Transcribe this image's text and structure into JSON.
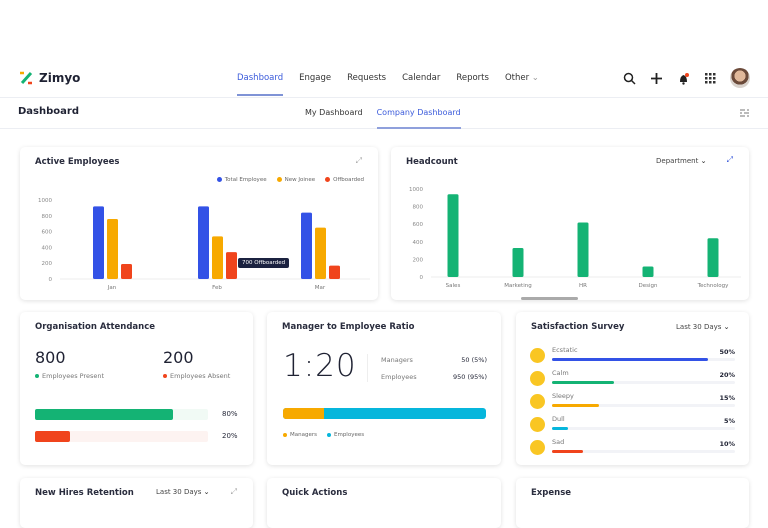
{
  "brand": {
    "name": "Zimyo"
  },
  "nav": {
    "items": [
      "Dashboard",
      "Engage",
      "Requests",
      "Calendar",
      "Reports",
      "Other"
    ],
    "active": "Dashboard"
  },
  "header_icons": [
    "search-icon",
    "plus-icon",
    "bell-icon",
    "apps-grid-icon",
    "avatar"
  ],
  "subheader": {
    "title": "Dashboard",
    "tabs": [
      "My Dashboard",
      "Company Dashboard"
    ],
    "active_tab": "Company Dashboard"
  },
  "colors": {
    "accent": "#3b5bdb",
    "blue": "#3352e6",
    "orange": "#f7a900",
    "red": "#f0441c",
    "green": "#14b374",
    "cyan": "#06b6dc"
  },
  "active_employees": {
    "title": "Active Employees",
    "tooltip": "700 Offboarded"
  },
  "headcount": {
    "title": "Headcount",
    "filter": "Department"
  },
  "chart_data": [
    {
      "type": "bar",
      "title": "Active Employees",
      "categories": [
        "Jan",
        "Feb",
        "Mar"
      ],
      "ylim": [
        0,
        1000
      ],
      "yticks": [
        0,
        200,
        400,
        600,
        800,
        1000
      ],
      "legend": "top-right",
      "series": [
        {
          "name": "Total Employee",
          "values": [
            920,
            920,
            840
          ]
        },
        {
          "name": "New Joinee",
          "values": [
            760,
            540,
            650
          ]
        },
        {
          "name": "Offboarded",
          "values": [
            190,
            340,
            170
          ]
        }
      ]
    },
    {
      "type": "bar",
      "title": "Headcount",
      "categories": [
        "Sales",
        "Marketing",
        "HR",
        "Design",
        "Technology"
      ],
      "ylim": [
        0,
        1000
      ],
      "yticks": [
        0,
        200,
        400,
        600,
        800,
        1000
      ],
      "values": [
        940,
        330,
        620,
        120,
        440
      ]
    }
  ],
  "attendance": {
    "title": "Organisation Attendance",
    "present": "800",
    "present_label": "Employees Present",
    "absent": "200",
    "absent_label": "Employees Absent",
    "present_pct": "80%",
    "absent_pct": "20%",
    "present_value": 80,
    "absent_value": 20
  },
  "ratio": {
    "title": "Manager to Employee Ratio",
    "ratio": "1:20",
    "managers_label": "Managers",
    "managers_value": "50 (5%)",
    "employees_label": "Employees",
    "employees_value": "950 (95%)",
    "managers_share": 20,
    "legend": [
      "Managers",
      "Employees"
    ]
  },
  "survey": {
    "title": "Satisfaction Survey",
    "filter": "Last 30 Days",
    "items": [
      {
        "label": "Ecstatic",
        "pct": "50%",
        "value": 50,
        "color": "#3352e6"
      },
      {
        "label": "Calm",
        "pct": "20%",
        "value": 20,
        "color": "#14b374"
      },
      {
        "label": "Sleepy",
        "pct": "15%",
        "value": 15,
        "color": "#f7a900"
      },
      {
        "label": "Dull",
        "pct": "5%",
        "value": 5,
        "color": "#06b6dc"
      },
      {
        "label": "Sad",
        "pct": "10%",
        "value": 10,
        "color": "#f0441c"
      }
    ]
  },
  "retention": {
    "title": "New Hires Retention",
    "filter": "Last 30 Days"
  },
  "quick_actions": {
    "title": "Quick Actions"
  },
  "expense": {
    "title": "Expense"
  }
}
